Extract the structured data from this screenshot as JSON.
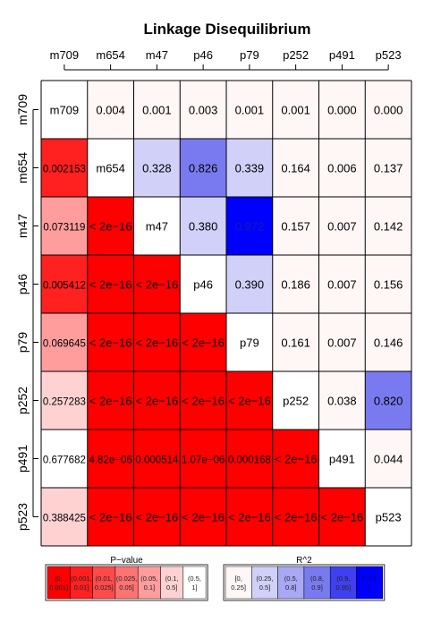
{
  "chart_data": {
    "type": "heatmap",
    "title": "Linkage Disequilibrium",
    "markers": [
      "m709",
      "m654",
      "m47",
      "p46",
      "p79",
      "p252",
      "p491",
      "p523"
    ],
    "cells": [
      [
        "m709",
        "0.004",
        "0.001",
        "0.003",
        "0.001",
        "0.001",
        "0.000",
        "0.000"
      ],
      [
        "0.002153",
        "m654",
        "0.328",
        "0.826",
        "0.339",
        "0.164",
        "0.006",
        "0.137"
      ],
      [
        "0.073119",
        "< 2e−16",
        "m47",
        "0.380",
        "0.972",
        "0.157",
        "0.007",
        "0.142"
      ],
      [
        "0.005412",
        "< 2e−16",
        "< 2e−16",
        "p46",
        "0.390",
        "0.186",
        "0.007",
        "0.156"
      ],
      [
        "0.069645",
        "< 2e−16",
        "< 2e−16",
        "< 2e−16",
        "p79",
        "0.161",
        "0.007",
        "0.146"
      ],
      [
        "0.257283",
        "< 2e−16",
        "< 2e−16",
        "< 2e−16",
        "< 2e−16",
        "p252",
        "0.038",
        "0.820"
      ],
      [
        "0.677682",
        "4.82e−06",
        "0.000514",
        "1.07e−06",
        "0.000168",
        "< 2e−16",
        "p491",
        "0.044"
      ],
      [
        "0.388425",
        "< 2e−16",
        "< 2e−16",
        "< 2e−16",
        "< 2e−16",
        "< 2e−16",
        "< 2e−16",
        "p523"
      ]
    ],
    "lower_triangle": "P-value",
    "upper_triangle": "R^2",
    "legends": {
      "pvalue": {
        "title": "P−value",
        "bins": [
          [
            "[0,",
            "0.001]"
          ],
          [
            "(0.001,",
            "0.01]"
          ],
          [
            "(0.01,",
            "0.025]"
          ],
          [
            "(0.025,",
            "0.05]"
          ],
          [
            "(0.05,",
            "0.1]"
          ],
          [
            "(0.1,",
            "0.5]"
          ],
          [
            "(0.5,",
            "1]"
          ]
        ],
        "colors": [
          "#ff0000",
          "#ff2020",
          "#ff4a4a",
          "#ff7373",
          "#ff9d9d",
          "#ffd2d2",
          "#ffffff"
        ]
      },
      "r2": {
        "title": "R^2",
        "bins": [
          [
            "[0,",
            "0.25]"
          ],
          [
            "(0.25,",
            "0.5]"
          ],
          [
            "(0.5,",
            "0.8]"
          ],
          [
            "(0.8,",
            "0.9]"
          ],
          [
            "(0.9,",
            "0.95]"
          ],
          [
            "(0.95,",
            "1]"
          ]
        ],
        "colors": [
          "#fff6f6",
          "#d0d0f8",
          "#a8a8f4",
          "#7a7af0",
          "#4040f0",
          "#0000ff"
        ]
      }
    }
  }
}
